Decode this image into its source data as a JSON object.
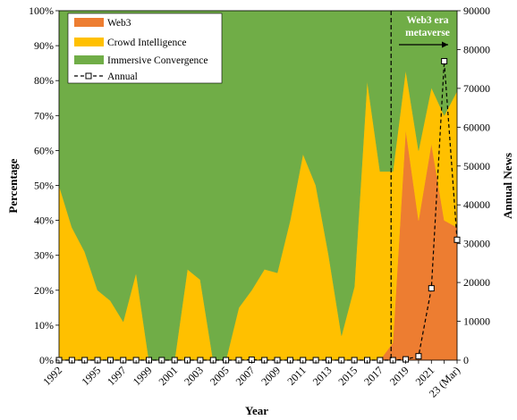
{
  "chart_data": {
    "type": "area",
    "xlabel": "Year",
    "ylabel": "Percentage",
    "y2label": "Annual News",
    "ylim": [
      0,
      100
    ],
    "y2lim": [
      0,
      90000
    ],
    "y_ticks": [
      "0%",
      "10%",
      "20%",
      "30%",
      "40%",
      "50%",
      "60%",
      "70%",
      "80%",
      "90%",
      "100%"
    ],
    "y2_ticks": [
      "0",
      "10000",
      "20000",
      "30000",
      "40000",
      "50000",
      "60000",
      "70000",
      "80000",
      "90000"
    ],
    "x": [
      "1992",
      "1993",
      "1994",
      "1995",
      "1996",
      "1997",
      "1998",
      "1999",
      "2000",
      "2001",
      "2002",
      "2003",
      "2004",
      "2005",
      "2006",
      "2007",
      "2008",
      "2009",
      "2010",
      "2011",
      "2012",
      "2013",
      "2014",
      "2015",
      "2016",
      "2017",
      "2018",
      "2019",
      "2020",
      "2021",
      "2022",
      "23 (Mar)"
    ],
    "x_tick_labels": [
      "1992",
      "",
      "",
      "1995",
      "",
      "1997",
      "",
      "1999",
      "",
      "2001",
      "",
      "2003",
      "",
      "2005",
      "",
      "2007",
      "",
      "2009",
      "",
      "2011",
      "",
      "2013",
      "",
      "2015",
      "",
      "2017",
      "",
      "2019",
      "",
      "2021",
      "",
      "23 (Mar)"
    ],
    "series": [
      {
        "name": "Web3",
        "color": "#ed7d31",
        "values": [
          0,
          0,
          0,
          0,
          0,
          0,
          0,
          0,
          0,
          0,
          0,
          0,
          0,
          0,
          0,
          0,
          0,
          0,
          0,
          0,
          0,
          0,
          0,
          0,
          0,
          0,
          5,
          66,
          40,
          62,
          40,
          38
        ]
      },
      {
        "name": "Crowd Intelligence",
        "color": "#ffc000",
        "values": [
          50,
          38,
          31,
          20,
          17,
          11,
          25,
          0,
          0,
          0,
          26,
          23,
          0,
          0,
          15,
          20,
          26,
          25,
          40,
          59,
          50,
          30,
          7,
          21,
          80,
          54,
          49,
          17,
          20,
          16,
          30,
          39
        ]
      },
      {
        "name": "Immersive Convergence",
        "color": "#70ad47",
        "values": [
          50,
          62,
          69,
          80,
          83,
          89,
          75,
          100,
          100,
          100,
          74,
          77,
          100,
          100,
          85,
          80,
          74,
          75,
          60,
          41,
          50,
          70,
          93,
          79,
          20,
          46,
          46,
          17,
          40,
          22,
          30,
          23
        ]
      },
      {
        "name": "Annual",
        "color": "#000000",
        "axis": "right",
        "values": [
          0,
          0,
          0,
          0,
          0,
          0,
          0,
          0,
          0,
          0,
          0,
          0,
          0,
          0,
          0,
          100,
          0,
          0,
          0,
          0,
          0,
          0,
          0,
          0,
          0,
          0,
          0,
          200,
          1000,
          18500,
          77000,
          31000
        ]
      }
    ],
    "annotation": {
      "text_line1": "Web3 era",
      "text_line2": "metaverse",
      "divider_at": "2018"
    },
    "legend_position": "top-left"
  }
}
